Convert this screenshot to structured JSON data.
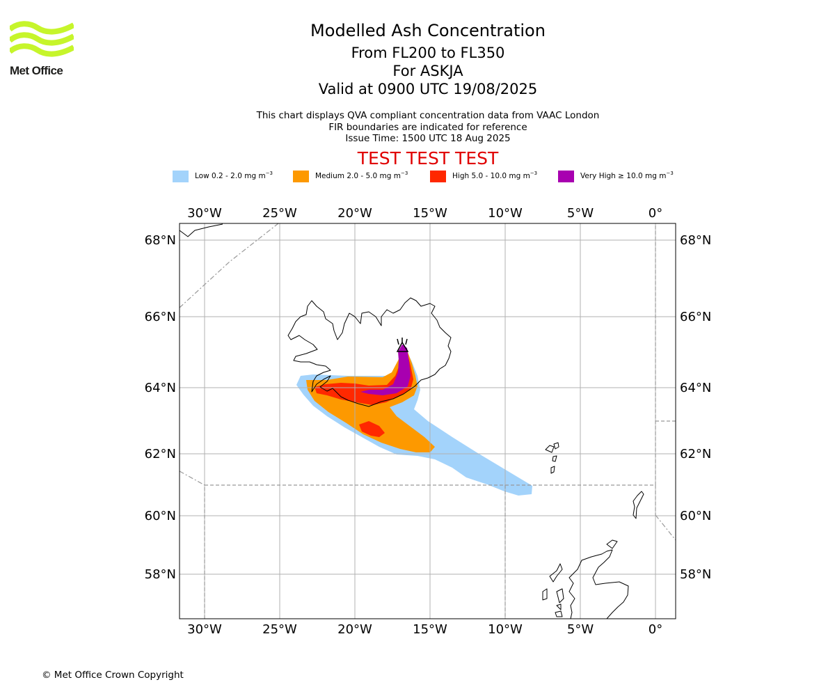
{
  "header": {
    "logo_text": "Met Office",
    "title": "Modelled Ash Concentration",
    "levels": "From FL200 to FL350",
    "volcano": "For ASKJA",
    "valid": "Valid at 0900 UTC 19/08/2025",
    "info": [
      "This chart displays QVA compliant concentration data from VAAC London",
      "FIR boundaries are indicated for reference",
      "Issue Time: 1500 UTC 18 Aug 2025"
    ],
    "test_banner": "TEST TEST TEST"
  },
  "legend": [
    {
      "label": "Low 0.2 - 2.0 mg m",
      "unit_exp": "−3",
      "color": "#a3d3fb"
    },
    {
      "label": "Medium 2.0 - 5.0 mg m",
      "unit_exp": "−3",
      "color": "#fd9900"
    },
    {
      "label": "High 5.0 - 10.0 mg m",
      "unit_exp": "−3",
      "color": "#ff2800"
    },
    {
      "label": "Very High ≥ 10.0 mg m",
      "unit_exp": "−3",
      "color": "#a800b0"
    }
  ],
  "map": {
    "lon_labels": [
      "30°W",
      "25°W",
      "20°W",
      "15°W",
      "10°W",
      "5°W",
      "0°"
    ],
    "lat_labels": [
      "68°N",
      "66°N",
      "64°N",
      "62°N",
      "60°N",
      "58°N"
    ],
    "colors": {
      "coast": "#000000",
      "grid": "#b0b0b0",
      "fir": "#999999"
    }
  },
  "footer": {
    "copyright": "© Met Office Crown Copyright"
  }
}
